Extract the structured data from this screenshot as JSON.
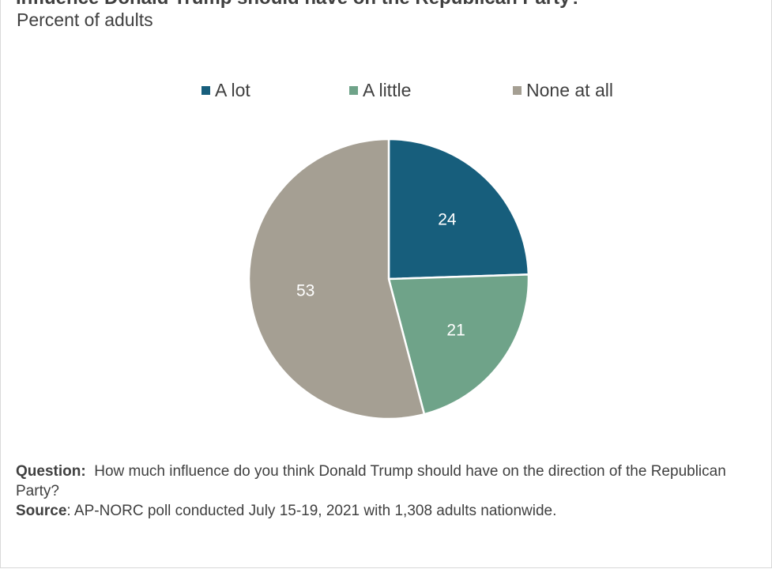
{
  "title": "Influence Donald Trump should have on the Republican Party?",
  "subtitle": "Percent of adults",
  "chart_data": {
    "type": "pie",
    "categories": [
      "A lot",
      "A little",
      "None at all"
    ],
    "values": [
      24,
      21,
      53
    ],
    "colors": [
      "#175e7c",
      "#6fa389",
      "#a59f93"
    ],
    "legend_position": "top"
  },
  "legend": {
    "items": [
      {
        "label": "A lot",
        "color": "#175e7c"
      },
      {
        "label": "A little",
        "color": "#6fa389"
      },
      {
        "label": "None at all",
        "color": "#a59f93"
      }
    ]
  },
  "footer": {
    "question_label": "Question:",
    "question_text": "How much influence do you think Donald Trump should have on the direction of the Republican Party?",
    "source_label": "Source",
    "source_text": ": AP-NORC poll conducted July 15-19, 2021 with 1,308 adults nationwide."
  }
}
